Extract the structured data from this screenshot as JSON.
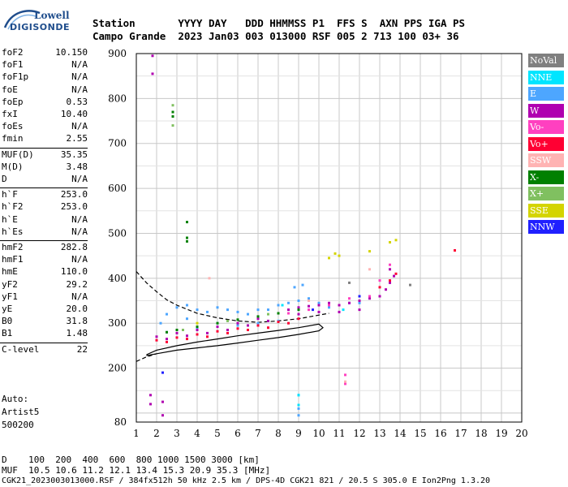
{
  "logo": {
    "line1": "Lowell",
    "line2": "DIGISONDE"
  },
  "header": {
    "labels_row1": "Station       YYYY DAY   DDD HHMMSS P1  FFS S  AXN PPS IGA PS",
    "values_row2": "Campo Grande  2023 Jan03 003 013000 RSF 005 2 713 100 03+ 36"
  },
  "params": [
    {
      "name": "foF2",
      "value": "10.150"
    },
    {
      "name": "foF1",
      "value": "N/A"
    },
    {
      "name": "foF1p",
      "value": "N/A"
    },
    {
      "name": "foE",
      "value": "N/A"
    },
    {
      "name": "foEp",
      "value": "0.53"
    },
    {
      "name": "fxI",
      "value": "10.40"
    },
    {
      "name": "foEs",
      "value": "N/A"
    },
    {
      "name": "fmin",
      "value": "2.55"
    },
    {
      "name": "MUF(D)",
      "value": "35.35"
    },
    {
      "name": "M(D)",
      "value": "3.48"
    },
    {
      "name": "D",
      "value": "N/A"
    },
    {
      "name": "h`F",
      "value": "253.0"
    },
    {
      "name": "h`F2",
      "value": "253.0"
    },
    {
      "name": "h`E",
      "value": "N/A"
    },
    {
      "name": "h`Es",
      "value": "N/A"
    },
    {
      "name": "hmF2",
      "value": "282.8"
    },
    {
      "name": "hmF1",
      "value": "N/A"
    },
    {
      "name": "hmE",
      "value": "110.0"
    },
    {
      "name": "yF2",
      "value": "29.2"
    },
    {
      "name": "yF1",
      "value": "N/A"
    },
    {
      "name": "yE",
      "value": "20.0"
    },
    {
      "name": "B0",
      "value": "31.8"
    },
    {
      "name": "B1",
      "value": "1.48"
    },
    {
      "name": "C-level",
      "value": "22"
    }
  ],
  "auto": {
    "line1": "Auto:",
    "line2": "Artist5",
    "line3": "500200"
  },
  "legend": [
    {
      "label": "NoVal",
      "color": "#808080"
    },
    {
      "label": "NNE",
      "color": "#00e5ff"
    },
    {
      "label": "E",
      "color": "#4da6ff"
    },
    {
      "label": "W",
      "color": "#b000b0"
    },
    {
      "label": "Vo-",
      "color": "#ff40c0"
    },
    {
      "label": "Vo+",
      "color": "#ff0033"
    },
    {
      "label": "SSW",
      "color": "#ffb3b3"
    },
    {
      "label": "X-",
      "color": "#008000"
    },
    {
      "label": "X+",
      "color": "#80c060"
    },
    {
      "label": "SSE",
      "color": "#d4d400"
    },
    {
      "label": "NNW",
      "color": "#2020ff"
    }
  ],
  "footer": {
    "d_row": "D    100  200  400  600  800 1000 1500 3000 [km]",
    "muf_row": "MUF  10.5 10.6 11.2 12.1 13.4 15.3 20.9 35.3 [MHz]",
    "file_row": "CGK21_2023003013000.RSF / 384fx512h 50 kHz 2.5 km / DPS-4D CGK21 821 / 20.5 S 305.0 E Ion2Png 1.3.20"
  },
  "chart_data": {
    "type": "scatter",
    "xlim": [
      1,
      20
    ],
    "ylim": [
      80,
      900
    ],
    "xticks": [
      1,
      2,
      3,
      4,
      5,
      6,
      7,
      8,
      9,
      10,
      11,
      12,
      13,
      14,
      15,
      16,
      17,
      18,
      19,
      20
    ],
    "yticks": [
      80,
      200,
      300,
      400,
      500,
      600,
      700,
      800,
      900
    ],
    "grid": true,
    "series": [
      {
        "name": "E",
        "color": "#4da6ff",
        "points": [
          [
            2.5,
            320
          ],
          [
            3.0,
            335
          ],
          [
            3.5,
            340
          ],
          [
            4.0,
            330
          ],
          [
            4.5,
            325
          ],
          [
            5.0,
            335
          ],
          [
            5.5,
            330
          ],
          [
            6.0,
            325
          ],
          [
            6.5,
            320
          ],
          [
            7.0,
            330
          ],
          [
            7.5,
            330
          ],
          [
            8.0,
            340
          ],
          [
            8.5,
            345
          ],
          [
            9.0,
            350
          ],
          [
            9.5,
            355
          ],
          [
            10.0,
            345
          ],
          [
            10.5,
            335
          ],
          [
            11.0,
            340
          ],
          [
            11.5,
            345
          ],
          [
            12.0,
            345
          ],
          [
            4.0,
            290
          ],
          [
            5.0,
            300
          ],
          [
            6.0,
            295
          ],
          [
            7.0,
            300
          ],
          [
            8.0,
            305
          ],
          [
            3.5,
            310
          ],
          [
            8.8,
            380
          ],
          [
            9.2,
            385
          ],
          [
            9.0,
            140
          ],
          [
            9.0,
            110
          ],
          [
            9.0,
            95
          ],
          [
            2.2,
            300
          ],
          [
            2.5,
            280
          ]
        ]
      },
      {
        "name": "W",
        "color": "#b000b0",
        "points": [
          [
            1.8,
            895
          ],
          [
            1.8,
            855
          ],
          [
            2.0,
            270
          ],
          [
            3.0,
            278
          ],
          [
            4.0,
            285
          ],
          [
            5.0,
            292
          ],
          [
            6.0,
            300
          ],
          [
            7.0,
            310
          ],
          [
            8.0,
            322
          ],
          [
            8.5,
            330
          ],
          [
            9.0,
            335
          ],
          [
            9.5,
            338
          ],
          [
            10.0,
            340
          ],
          [
            10.5,
            345
          ],
          [
            11.0,
            340
          ],
          [
            11.5,
            345
          ],
          [
            12.0,
            350
          ],
          [
            12.5,
            355
          ],
          [
            13.0,
            360
          ],
          [
            13.3,
            375
          ],
          [
            13.5,
            390
          ],
          [
            13.7,
            405
          ],
          [
            13.5,
            420
          ],
          [
            12.0,
            330
          ],
          [
            11.0,
            325
          ],
          [
            10.0,
            325
          ],
          [
            9.0,
            320
          ],
          [
            7.5,
            305
          ],
          [
            6.5,
            295
          ],
          [
            5.5,
            285
          ],
          [
            4.5,
            278
          ],
          [
            3.5,
            272
          ],
          [
            2.5,
            265
          ],
          [
            1.7,
            120
          ],
          [
            1.7,
            140
          ],
          [
            2.3,
            95
          ],
          [
            2.3,
            125
          ]
        ]
      },
      {
        "name": "Vo+",
        "color": "#ff0033",
        "points": [
          [
            2.0,
            262
          ],
          [
            3.0,
            268
          ],
          [
            4.0,
            275
          ],
          [
            5.0,
            282
          ],
          [
            6.0,
            288
          ],
          [
            7.0,
            295
          ],
          [
            8.0,
            303
          ],
          [
            9.0,
            310
          ],
          [
            13.0,
            380
          ],
          [
            13.5,
            395
          ],
          [
            13.8,
            410
          ],
          [
            16.7,
            462
          ],
          [
            2.5,
            258
          ],
          [
            3.5,
            265
          ],
          [
            4.5,
            270
          ],
          [
            5.5,
            278
          ],
          [
            6.5,
            285
          ],
          [
            7.5,
            290
          ],
          [
            8.5,
            300
          ]
        ]
      },
      {
        "name": "Vo-",
        "color": "#ff40c0",
        "points": [
          [
            8.5,
            322
          ],
          [
            9.5,
            330
          ],
          [
            10.5,
            340
          ],
          [
            11.5,
            355
          ],
          [
            12.5,
            360
          ],
          [
            13.0,
            395
          ],
          [
            13.5,
            430
          ],
          [
            11.3,
            185
          ],
          [
            11.3,
            165
          ]
        ]
      },
      {
        "name": "X-",
        "color": "#008000",
        "points": [
          [
            3.5,
            525
          ],
          [
            3.5,
            490
          ],
          [
            3.5,
            482
          ],
          [
            2.8,
            770
          ],
          [
            2.8,
            760
          ],
          [
            2.5,
            280
          ],
          [
            3.0,
            285
          ],
          [
            4.0,
            292
          ],
          [
            5.0,
            300
          ],
          [
            6.0,
            308
          ],
          [
            7.0,
            315
          ],
          [
            8.0,
            322
          ],
          [
            9.0,
            330
          ]
        ]
      },
      {
        "name": "X+",
        "color": "#80c060",
        "points": [
          [
            2.8,
            785
          ],
          [
            2.8,
            740
          ],
          [
            3.3,
            285
          ],
          [
            5.5,
            305
          ],
          [
            7.5,
            320
          ]
        ]
      },
      {
        "name": "SSE",
        "color": "#d4d400",
        "points": [
          [
            10.5,
            445
          ],
          [
            10.8,
            455
          ],
          [
            11.0,
            450
          ],
          [
            12.5,
            460
          ],
          [
            13.5,
            480
          ],
          [
            13.8,
            485
          ],
          [
            4.0,
            300
          ]
        ]
      },
      {
        "name": "NNE",
        "color": "#00e5ff",
        "points": [
          [
            9.0,
            140
          ],
          [
            9.0,
            118
          ],
          [
            8.2,
            340
          ],
          [
            11.2,
            330
          ]
        ]
      },
      {
        "name": "NNW",
        "color": "#2020ff",
        "points": [
          [
            2.3,
            190
          ],
          [
            9.7,
            330
          ],
          [
            12.0,
            360
          ]
        ]
      },
      {
        "name": "SSW",
        "color": "#ffb3b3",
        "points": [
          [
            4.6,
            400
          ],
          [
            11.3,
            170
          ],
          [
            9.5,
            350
          ],
          [
            12.5,
            420
          ]
        ]
      },
      {
        "name": "NoVal",
        "color": "#808080",
        "points": [
          [
            14.5,
            385
          ],
          [
            11.5,
            390
          ]
        ]
      }
    ],
    "profile_dashed": [
      [
        1,
        415
      ],
      [
        1.5,
        390
      ],
      [
        2,
        370
      ],
      [
        2.5,
        352
      ],
      [
        3,
        340
      ],
      [
        4,
        322
      ],
      [
        5,
        312
      ],
      [
        6,
        305
      ],
      [
        7,
        302
      ],
      [
        8,
        305
      ],
      [
        9,
        310
      ],
      [
        10,
        318
      ],
      [
        10.5,
        322
      ]
    ],
    "profile_solid": [
      [
        1.5,
        230
      ],
      [
        2,
        240
      ],
      [
        3,
        250
      ],
      [
        4,
        258
      ],
      [
        5,
        265
      ],
      [
        6,
        272
      ],
      [
        7,
        278
      ],
      [
        8,
        284
      ],
      [
        9,
        290
      ],
      [
        10,
        298
      ],
      [
        10.2,
        290
      ],
      [
        10,
        283
      ],
      [
        9,
        275
      ],
      [
        8,
        268
      ],
      [
        7,
        262
      ],
      [
        6,
        256
      ],
      [
        5,
        250
      ],
      [
        4,
        245
      ],
      [
        3,
        240
      ],
      [
        2,
        232
      ],
      [
        1.5,
        228
      ]
    ],
    "profile_dashed_low": [
      [
        1,
        215
      ],
      [
        1.5,
        225
      ],
      [
        2,
        232
      ]
    ]
  }
}
